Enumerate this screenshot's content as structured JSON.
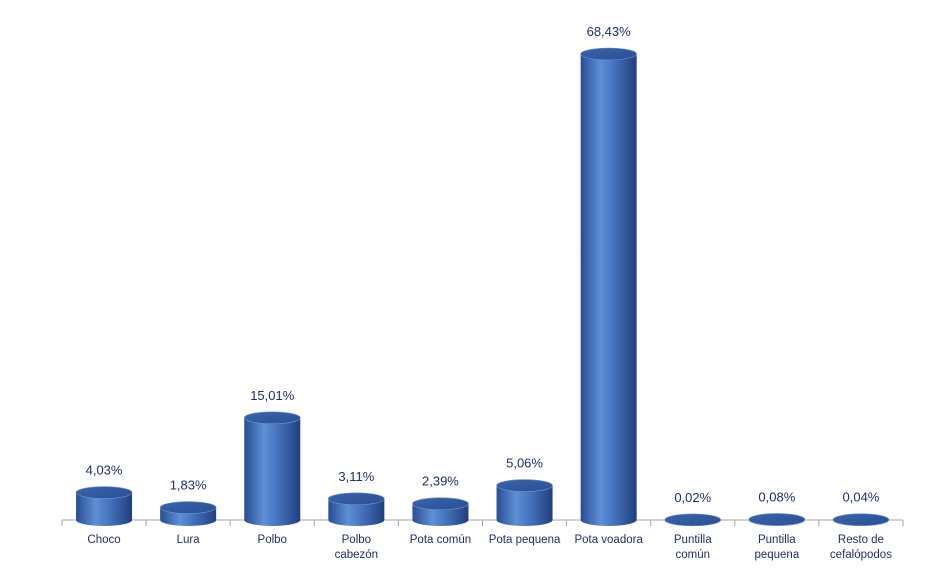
{
  "chart_data": {
    "type": "bar",
    "style": "3d-cylinder",
    "title": "",
    "xlabel": "",
    "ylabel": "",
    "ylim": [
      0,
      68.43
    ],
    "grid": false,
    "legend": "none",
    "bar_color": "#4a78c4",
    "categories": [
      [
        "Choco"
      ],
      [
        "Lura"
      ],
      [
        "Polbo"
      ],
      [
        "Polbo",
        "cabezón"
      ],
      [
        "Pota común"
      ],
      [
        "Pota pequena"
      ],
      [
        "Pota voadora"
      ],
      [
        "Puntilla",
        "común"
      ],
      [
        "Puntilla",
        "pequena"
      ],
      [
        "Resto de",
        "cefalópodos"
      ]
    ],
    "values": [
      4.03,
      1.83,
      15.01,
      3.11,
      2.39,
      5.06,
      68.43,
      0.02,
      0.08,
      0.04
    ],
    "value_labels": [
      "4,03%",
      "1,83%",
      "15,01%",
      "3,11%",
      "2,39%",
      "5,06%",
      "68,43%",
      "0,02%",
      "0,08%",
      "0,04%"
    ]
  }
}
